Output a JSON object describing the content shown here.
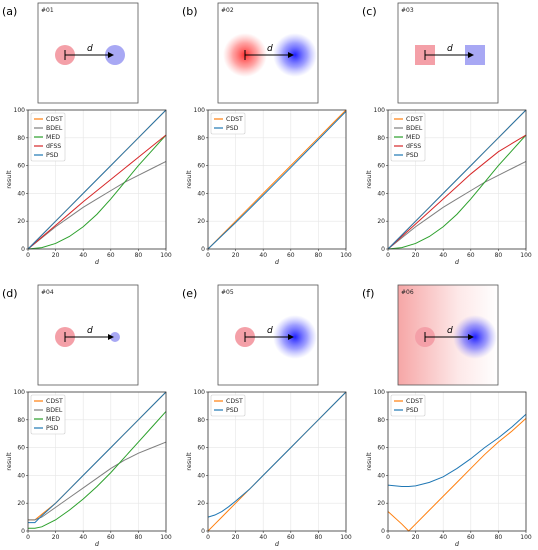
{
  "panels": [
    {
      "label": "(a)",
      "id": "#01",
      "scene": {
        "left": "disk",
        "right": "disk",
        "left_blur": false,
        "right_blur": false,
        "right_small": false,
        "bg_gradient": false
      }
    },
    {
      "label": "(b)",
      "id": "#02",
      "scene": {
        "left": "disk",
        "right": "disk",
        "left_blur": true,
        "right_blur": true,
        "right_small": false,
        "bg_gradient": false
      }
    },
    {
      "label": "(c)",
      "id": "#03",
      "scene": {
        "left": "square",
        "right": "square",
        "left_blur": false,
        "right_blur": false,
        "right_small": false,
        "bg_gradient": false
      }
    },
    {
      "label": "(d)",
      "id": "#04",
      "scene": {
        "left": "disk",
        "right": "disk",
        "left_blur": false,
        "right_blur": false,
        "right_small": true,
        "bg_gradient": false
      }
    },
    {
      "label": "(e)",
      "id": "#05",
      "scene": {
        "left": "disk",
        "right": "disk",
        "left_blur": false,
        "right_blur": true,
        "right_small": false,
        "bg_gradient": false
      }
    },
    {
      "label": "(f)",
      "id": "#06",
      "scene": {
        "left": "disk",
        "right": "disk",
        "left_blur": false,
        "right_blur": true,
        "right_small": false,
        "bg_gradient": true
      }
    }
  ],
  "scene_label": "d",
  "colors": {
    "CDST": "#ff7f0e",
    "BDEL": "#7f7f7f",
    "MED": "#2ca02c",
    "dFSS": "#d62728",
    "PSD": "#1f77b4",
    "red_shape": "#f4a0a8",
    "blue_shape": "#a8a8f4"
  },
  "chart_data": [
    {
      "type": "line",
      "panel": "(a)",
      "xlabel": "d",
      "ylabel": "result",
      "xlim": [
        0,
        100
      ],
      "ylim": [
        0,
        100
      ],
      "xticks": [
        0,
        20,
        40,
        60,
        80,
        100
      ],
      "yticks": [
        0,
        20,
        40,
        60,
        80,
        100
      ],
      "grid": true,
      "legend": "top-left",
      "x": [
        0,
        10,
        20,
        30,
        40,
        50,
        60,
        70,
        80,
        90,
        100
      ],
      "series": [
        {
          "name": "CDST",
          "values": [
            0,
            10,
            20,
            30,
            40,
            50,
            60,
            70,
            80,
            90,
            100
          ]
        },
        {
          "name": "BDEL",
          "values": [
            0,
            8,
            16,
            23,
            30,
            36,
            42,
            48,
            53,
            58,
            63
          ]
        },
        {
          "name": "MED",
          "values": [
            0,
            1,
            4,
            9,
            16,
            25,
            36,
            48,
            60,
            71,
            82
          ]
        },
        {
          "name": "dFSS",
          "values": [
            0,
            8.5,
            17,
            25.5,
            34,
            42,
            50,
            58,
            66,
            74,
            82
          ]
        },
        {
          "name": "PSD",
          "values": [
            0,
            10,
            20,
            30,
            40,
            50,
            60,
            70,
            80,
            90,
            100
          ]
        }
      ]
    },
    {
      "type": "line",
      "panel": "(b)",
      "xlabel": "d",
      "ylabel": "result",
      "xlim": [
        0,
        100
      ],
      "ylim": [
        0,
        100
      ],
      "xticks": [
        0,
        20,
        40,
        60,
        80,
        100
      ],
      "yticks": [
        0,
        20,
        40,
        60,
        80,
        100
      ],
      "grid": true,
      "legend": "top-left",
      "x": [
        0,
        10,
        20,
        30,
        40,
        50,
        60,
        70,
        80,
        90,
        100
      ],
      "series": [
        {
          "name": "CDST",
          "values": [
            0,
            10,
            20,
            30,
            40,
            50,
            60,
            70,
            80,
            90,
            100
          ]
        },
        {
          "name": "PSD",
          "values": [
            0,
            9.5,
            19,
            28.8,
            38.7,
            48.6,
            58.6,
            68.7,
            78.8,
            88.9,
            99
          ]
        }
      ]
    },
    {
      "type": "line",
      "panel": "(c)",
      "xlabel": "d",
      "ylabel": "result",
      "xlim": [
        0,
        100
      ],
      "ylim": [
        0,
        100
      ],
      "xticks": [
        0,
        20,
        40,
        60,
        80,
        100
      ],
      "yticks": [
        0,
        20,
        40,
        60,
        80,
        100
      ],
      "grid": true,
      "legend": "top-left",
      "x": [
        0,
        10,
        20,
        30,
        40,
        50,
        60,
        70,
        80,
        90,
        100
      ],
      "series": [
        {
          "name": "CDST",
          "values": [
            0,
            10,
            20,
            30,
            40,
            50,
            60,
            70,
            80,
            90,
            100
          ]
        },
        {
          "name": "BDEL",
          "values": [
            0,
            8,
            16,
            23,
            30,
            36,
            42,
            48,
            53,
            58,
            63
          ]
        },
        {
          "name": "MED",
          "values": [
            0,
            1,
            4,
            9,
            16,
            25,
            36,
            48,
            60,
            71,
            82
          ]
        },
        {
          "name": "dFSS",
          "values": [
            0,
            9,
            18,
            27,
            36,
            45,
            54,
            62,
            70,
            76,
            82
          ]
        },
        {
          "name": "PSD",
          "values": [
            0,
            10,
            20,
            30,
            40,
            50,
            60,
            70,
            80,
            90,
            100
          ]
        }
      ]
    },
    {
      "type": "line",
      "panel": "(d)",
      "xlabel": "d",
      "ylabel": "result",
      "xlim": [
        0,
        100
      ],
      "ylim": [
        0,
        100
      ],
      "xticks": [
        0,
        20,
        40,
        60,
        80,
        100
      ],
      "yticks": [
        0,
        20,
        40,
        60,
        80,
        100
      ],
      "grid": true,
      "legend": "top-left",
      "x": [
        0,
        5,
        10,
        20,
        30,
        40,
        50,
        60,
        70,
        80,
        90,
        100
      ],
      "series": [
        {
          "name": "CDST",
          "values": [
            8,
            8,
            12,
            20,
            30,
            40,
            50,
            60,
            70,
            80,
            90,
            100
          ]
        },
        {
          "name": "BDEL",
          "values": [
            8,
            8,
            10,
            17,
            24,
            31,
            38,
            45,
            51,
            56,
            60,
            64
          ]
        },
        {
          "name": "MED",
          "values": [
            2,
            2,
            3,
            8,
            15,
            23,
            32,
            42,
            53,
            64,
            75,
            86
          ]
        },
        {
          "name": "PSD",
          "values": [
            6,
            6,
            11,
            20,
            30,
            40,
            50,
            60,
            70,
            80,
            90,
            100
          ]
        }
      ]
    },
    {
      "type": "line",
      "panel": "(e)",
      "xlabel": "d",
      "ylabel": "result",
      "xlim": [
        0,
        100
      ],
      "ylim": [
        0,
        100
      ],
      "xticks": [
        0,
        20,
        40,
        60,
        80,
        100
      ],
      "yticks": [
        0,
        20,
        40,
        60,
        80,
        100
      ],
      "grid": true,
      "legend": "top-left",
      "x": [
        0,
        5,
        10,
        15,
        20,
        30,
        40,
        50,
        60,
        70,
        80,
        90,
        100
      ],
      "series": [
        {
          "name": "CDST",
          "values": [
            0,
            5,
            10,
            15,
            20,
            30,
            40,
            50,
            60,
            70,
            80,
            90,
            100
          ]
        },
        {
          "name": "PSD",
          "values": [
            10,
            11.5,
            14,
            17.5,
            21.5,
            30,
            40,
            50,
            60,
            70,
            80,
            90,
            100
          ]
        }
      ]
    },
    {
      "type": "line",
      "panel": "(f)",
      "xlabel": "d",
      "ylabel": "result",
      "xlim": [
        0,
        100
      ],
      "ylim": [
        0,
        100
      ],
      "xticks": [
        0,
        20,
        40,
        60,
        80,
        100
      ],
      "yticks": [
        0,
        20,
        40,
        60,
        80,
        100
      ],
      "grid": true,
      "legend": "top-left",
      "x": [
        0,
        10,
        15,
        20,
        30,
        40,
        50,
        60,
        70,
        80,
        90,
        100
      ],
      "series": [
        {
          "name": "CDST",
          "values": [
            14,
            5,
            0,
            5,
            15,
            25,
            35,
            45,
            55,
            64,
            72,
            81
          ]
        },
        {
          "name": "PSD",
          "values": [
            33,
            32,
            32,
            32.5,
            35,
            39,
            45,
            52,
            60,
            67,
            75,
            84
          ]
        }
      ]
    }
  ]
}
